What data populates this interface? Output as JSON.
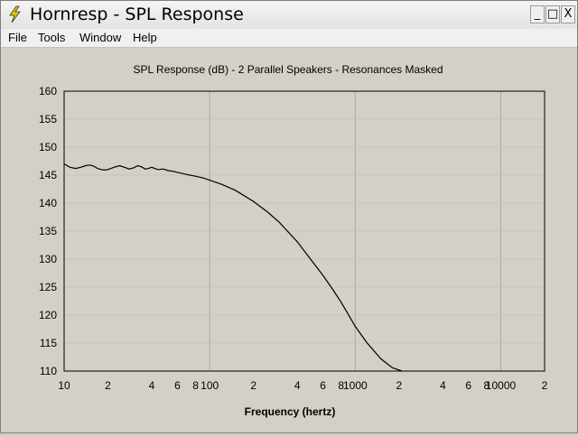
{
  "window": {
    "title": "Hornresp - SPL Response",
    "min_label": "_",
    "max_label": "□",
    "close_label": "X"
  },
  "menu": {
    "items": [
      "File",
      "Tools",
      "Window",
      "Help"
    ]
  },
  "chart_data": {
    "type": "line",
    "title": "SPL Response (dB) - 2 Parallel Speakers - Resonances Masked",
    "xlabel": "Frequency (hertz)",
    "ylabel": "",
    "x_scale": "log",
    "xlim": [
      10,
      20000
    ],
    "ylim": [
      110,
      160
    ],
    "y_ticks": [
      110,
      115,
      120,
      125,
      130,
      135,
      140,
      145,
      150,
      155,
      160
    ],
    "x_ticks": [
      {
        "value": 10,
        "label": "10"
      },
      {
        "value": 20,
        "label": "2"
      },
      {
        "value": 40,
        "label": "4"
      },
      {
        "value": 60,
        "label": "6"
      },
      {
        "value": 80,
        "label": "8"
      },
      {
        "value": 100,
        "label": "100"
      },
      {
        "value": 200,
        "label": "2"
      },
      {
        "value": 400,
        "label": "4"
      },
      {
        "value": 600,
        "label": "6"
      },
      {
        "value": 800,
        "label": "8"
      },
      {
        "value": 1000,
        "label": "1000"
      },
      {
        "value": 2000,
        "label": "2"
      },
      {
        "value": 4000,
        "label": "4"
      },
      {
        "value": 6000,
        "label": "6"
      },
      {
        "value": 8000,
        "label": "8"
      },
      {
        "value": 10000,
        "label": "10000"
      },
      {
        "value": 20000,
        "label": "2"
      }
    ],
    "grid": true,
    "series": [
      {
        "color": "#000000",
        "x": [
          10,
          11,
          12,
          13,
          14,
          15,
          16,
          17,
          18,
          19,
          20,
          22,
          24,
          26,
          28,
          30,
          32,
          34,
          36,
          38,
          40,
          44,
          48,
          52,
          56,
          60,
          65,
          70,
          80,
          90,
          100,
          120,
          150,
          200,
          250,
          300,
          400,
          500,
          600,
          700,
          800,
          1000,
          1200,
          1500,
          1800,
          2100
        ],
        "y": [
          147.0,
          146.4,
          146.2,
          146.4,
          146.7,
          146.8,
          146.6,
          146.2,
          146.0,
          145.9,
          146.0,
          146.4,
          146.7,
          146.4,
          146.1,
          146.3,
          146.7,
          146.5,
          146.1,
          146.2,
          146.4,
          146.0,
          146.1,
          145.8,
          145.7,
          145.5,
          145.3,
          145.1,
          144.8,
          144.5,
          144.1,
          143.4,
          142.3,
          140.3,
          138.4,
          136.6,
          133.1,
          129.8,
          127.1,
          124.6,
          122.3,
          118.0,
          115.1,
          112.2,
          110.6,
          110.0
        ]
      }
    ]
  }
}
